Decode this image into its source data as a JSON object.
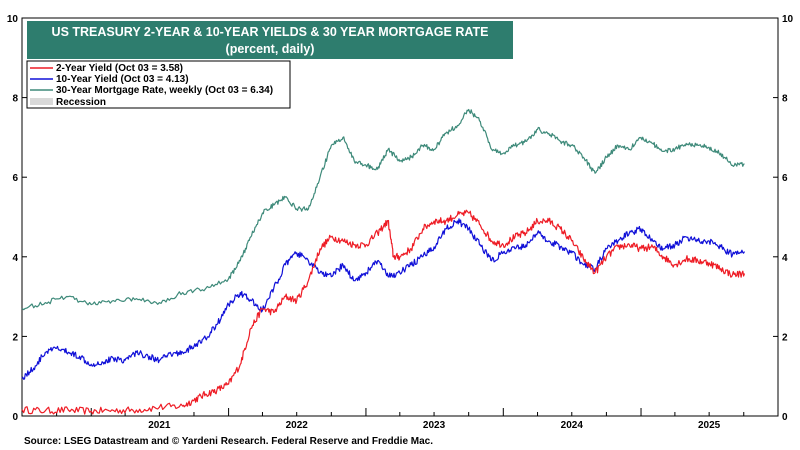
{
  "chart_data": {
    "type": "line",
    "title": "US TREASURY 2-YEAR & 10-YEAR YIELDS & 30 YEAR MORTGAGE RATE",
    "subtitle": "(percent, daily)",
    "xlabel": "",
    "ylabel": "",
    "ylim": [
      0,
      10
    ],
    "y_ticks": [
      0,
      2,
      4,
      6,
      8,
      10
    ],
    "xlim": [
      "2020-07-01",
      "2025-12-31"
    ],
    "x_tick_labels": [
      "2021",
      "2022",
      "2023",
      "2024",
      "2025"
    ],
    "grid": false,
    "legend_position": "top-left",
    "series": [
      {
        "name": "2-Year Yield (Oct 03 = 3.58)",
        "color": "#ee1c25",
        "points": [
          [
            "2020-07-01",
            0.16
          ],
          [
            "2020-09-01",
            0.13
          ],
          [
            "2020-11-01",
            0.15
          ],
          [
            "2021-01-01",
            0.12
          ],
          [
            "2021-03-01",
            0.14
          ],
          [
            "2021-05-01",
            0.15
          ],
          [
            "2021-07-01",
            0.22
          ],
          [
            "2021-09-01",
            0.25
          ],
          [
            "2021-10-01",
            0.4
          ],
          [
            "2021-11-01",
            0.55
          ],
          [
            "2021-12-01",
            0.65
          ],
          [
            "2022-01-01",
            0.8
          ],
          [
            "2022-02-01",
            1.3
          ],
          [
            "2022-03-01",
            2.2
          ],
          [
            "2022-04-01",
            2.7
          ],
          [
            "2022-05-01",
            2.6
          ],
          [
            "2022-06-01",
            3.0
          ],
          [
            "2022-07-01",
            2.9
          ],
          [
            "2022-08-01",
            3.4
          ],
          [
            "2022-09-01",
            4.2
          ],
          [
            "2022-10-01",
            4.5
          ],
          [
            "2022-11-01",
            4.4
          ],
          [
            "2022-12-01",
            4.3
          ],
          [
            "2023-01-01",
            4.3
          ],
          [
            "2023-02-01",
            4.6
          ],
          [
            "2023-03-01",
            4.9
          ],
          [
            "2023-03-15",
            4.0
          ],
          [
            "2023-04-01",
            4.0
          ],
          [
            "2023-05-01",
            4.2
          ],
          [
            "2023-06-01",
            4.7
          ],
          [
            "2023-07-01",
            4.9
          ],
          [
            "2023-08-01",
            4.9
          ],
          [
            "2023-09-01",
            5.05
          ],
          [
            "2023-10-01",
            5.1
          ],
          [
            "2023-11-01",
            4.8
          ],
          [
            "2023-12-01",
            4.4
          ],
          [
            "2024-01-01",
            4.3
          ],
          [
            "2024-02-01",
            4.5
          ],
          [
            "2024-03-01",
            4.6
          ],
          [
            "2024-04-01",
            4.9
          ],
          [
            "2024-05-01",
            4.9
          ],
          [
            "2024-06-01",
            4.7
          ],
          [
            "2024-07-01",
            4.4
          ],
          [
            "2024-08-01",
            3.95
          ],
          [
            "2024-09-01",
            3.6
          ],
          [
            "2024-10-01",
            4.0
          ],
          [
            "2024-11-01",
            4.25
          ],
          [
            "2024-12-01",
            4.3
          ],
          [
            "2025-01-01",
            4.2
          ],
          [
            "2025-02-01",
            4.25
          ],
          [
            "2025-03-01",
            4.0
          ],
          [
            "2025-04-01",
            3.8
          ],
          [
            "2025-05-01",
            3.95
          ],
          [
            "2025-06-01",
            3.9
          ],
          [
            "2025-07-01",
            3.85
          ],
          [
            "2025-08-01",
            3.7
          ],
          [
            "2025-09-01",
            3.55
          ],
          [
            "2025-10-03",
            3.58
          ]
        ]
      },
      {
        "name": "10-Year Yield (Oct 03 = 4.13)",
        "color": "#1010d8",
        "points": [
          [
            "2020-07-01",
            0.95
          ],
          [
            "2020-08-01",
            1.2
          ],
          [
            "2020-09-01",
            1.6
          ],
          [
            "2020-10-01",
            1.7
          ],
          [
            "2020-11-01",
            1.6
          ],
          [
            "2020-12-01",
            1.5
          ],
          [
            "2021-01-01",
            1.3
          ],
          [
            "2021-02-01",
            1.35
          ],
          [
            "2021-03-01",
            1.45
          ],
          [
            "2021-04-01",
            1.4
          ],
          [
            "2021-05-01",
            1.6
          ],
          [
            "2021-06-01",
            1.5
          ],
          [
            "2021-07-01",
            1.4
          ],
          [
            "2021-08-01",
            1.55
          ],
          [
            "2021-09-01",
            1.6
          ],
          [
            "2021-10-01",
            1.75
          ],
          [
            "2021-11-01",
            1.95
          ],
          [
            "2021-12-01",
            2.3
          ],
          [
            "2022-01-01",
            2.8
          ],
          [
            "2022-02-01",
            3.1
          ],
          [
            "2022-03-01",
            2.9
          ],
          [
            "2022-04-01",
            2.65
          ],
          [
            "2022-05-01",
            3.2
          ],
          [
            "2022-06-01",
            3.8
          ],
          [
            "2022-07-01",
            4.1
          ],
          [
            "2022-08-01",
            3.9
          ],
          [
            "2022-09-01",
            3.6
          ],
          [
            "2022-10-01",
            3.5
          ],
          [
            "2022-11-01",
            3.8
          ],
          [
            "2022-12-01",
            3.4
          ],
          [
            "2023-01-01",
            3.6
          ],
          [
            "2023-02-01",
            3.9
          ],
          [
            "2023-03-01",
            3.5
          ],
          [
            "2023-04-01",
            3.6
          ],
          [
            "2023-05-01",
            3.8
          ],
          [
            "2023-06-01",
            4.0
          ],
          [
            "2023-07-01",
            4.25
          ],
          [
            "2023-08-01",
            4.7
          ],
          [
            "2023-09-01",
            4.9
          ],
          [
            "2023-10-01",
            4.7
          ],
          [
            "2023-11-01",
            4.3
          ],
          [
            "2023-12-01",
            3.9
          ],
          [
            "2024-01-01",
            4.1
          ],
          [
            "2024-02-01",
            4.2
          ],
          [
            "2024-03-01",
            4.3
          ],
          [
            "2024-04-01",
            4.6
          ],
          [
            "2024-05-01",
            4.4
          ],
          [
            "2024-06-01",
            4.25
          ],
          [
            "2024-07-01",
            4.1
          ],
          [
            "2024-08-01",
            3.8
          ],
          [
            "2024-09-01",
            3.7
          ],
          [
            "2024-10-01",
            4.2
          ],
          [
            "2024-11-01",
            4.4
          ],
          [
            "2024-12-01",
            4.6
          ],
          [
            "2025-01-01",
            4.7
          ],
          [
            "2025-02-01",
            4.4
          ],
          [
            "2025-03-01",
            4.2
          ],
          [
            "2025-04-01",
            4.3
          ],
          [
            "2025-05-01",
            4.5
          ],
          [
            "2025-06-01",
            4.4
          ],
          [
            "2025-07-01",
            4.4
          ],
          [
            "2025-08-01",
            4.25
          ],
          [
            "2025-09-01",
            4.05
          ],
          [
            "2025-10-03",
            4.13
          ]
        ]
      },
      {
        "name": "30-Year Mortgage Rate, weekly (Oct 03 = 6.34)",
        "color": "#3e8a7a",
        "points": [
          [
            "2020-07-01",
            2.7
          ],
          [
            "2020-09-01",
            2.85
          ],
          [
            "2020-11-01",
            3.0
          ],
          [
            "2021-01-01",
            2.8
          ],
          [
            "2021-03-01",
            2.9
          ],
          [
            "2021-05-01",
            2.95
          ],
          [
            "2021-07-01",
            2.85
          ],
          [
            "2021-09-01",
            3.1
          ],
          [
            "2021-11-01",
            3.2
          ],
          [
            "2022-01-01",
            3.45
          ],
          [
            "2022-02-01",
            3.9
          ],
          [
            "2022-03-01",
            4.5
          ],
          [
            "2022-04-01",
            5.1
          ],
          [
            "2022-05-01",
            5.3
          ],
          [
            "2022-06-01",
            5.5
          ],
          [
            "2022-07-01",
            5.2
          ],
          [
            "2022-08-01",
            5.2
          ],
          [
            "2022-09-01",
            6.0
          ],
          [
            "2022-10-01",
            6.8
          ],
          [
            "2022-11-01",
            7.0
          ],
          [
            "2022-12-01",
            6.4
          ],
          [
            "2023-01-01",
            6.3
          ],
          [
            "2023-02-01",
            6.2
          ],
          [
            "2023-03-01",
            6.7
          ],
          [
            "2023-04-01",
            6.4
          ],
          [
            "2023-05-01",
            6.5
          ],
          [
            "2023-06-01",
            6.8
          ],
          [
            "2023-07-01",
            6.7
          ],
          [
            "2023-08-01",
            7.1
          ],
          [
            "2023-09-01",
            7.3
          ],
          [
            "2023-10-01",
            7.7
          ],
          [
            "2023-11-01",
            7.4
          ],
          [
            "2023-12-01",
            6.7
          ],
          [
            "2024-01-01",
            6.6
          ],
          [
            "2024-02-01",
            6.8
          ],
          [
            "2024-03-01",
            6.9
          ],
          [
            "2024-04-01",
            7.2
          ],
          [
            "2024-05-01",
            7.1
          ],
          [
            "2024-06-01",
            6.9
          ],
          [
            "2024-07-01",
            6.8
          ],
          [
            "2024-08-01",
            6.5
          ],
          [
            "2024-09-01",
            6.1
          ],
          [
            "2024-10-01",
            6.5
          ],
          [
            "2024-11-01",
            6.8
          ],
          [
            "2024-12-01",
            6.7
          ],
          [
            "2025-01-01",
            7.0
          ],
          [
            "2025-02-01",
            6.85
          ],
          [
            "2025-03-01",
            6.65
          ],
          [
            "2025-04-01",
            6.7
          ],
          [
            "2025-05-01",
            6.85
          ],
          [
            "2025-06-01",
            6.8
          ],
          [
            "2025-07-01",
            6.75
          ],
          [
            "2025-08-01",
            6.6
          ],
          [
            "2025-09-01",
            6.3
          ],
          [
            "2025-10-03",
            6.34
          ]
        ]
      }
    ],
    "recession_label": "Recession"
  },
  "source": "Source: LSEG Datastream and © Yardeni Research. Federal Reserve and Freddie Mac.",
  "colors": {
    "title_bg": "#2e7d6e",
    "recession": "#d9d9d9",
    "two_year": "#ee1c25",
    "ten_year": "#1010d8",
    "mortgage": "#3e8a7a"
  }
}
